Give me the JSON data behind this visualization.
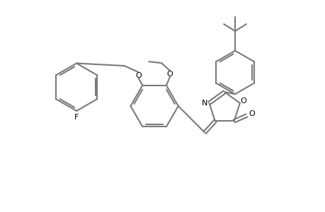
{
  "bg_color": "#ffffff",
  "line_color": "#7a7a7a",
  "text_color": "#000000",
  "bond_width": 1.5,
  "figsize": [
    4.6,
    3.0
  ],
  "dpi": 100,
  "xlim": [
    0,
    460
  ],
  "ylim": [
    0,
    300
  ]
}
